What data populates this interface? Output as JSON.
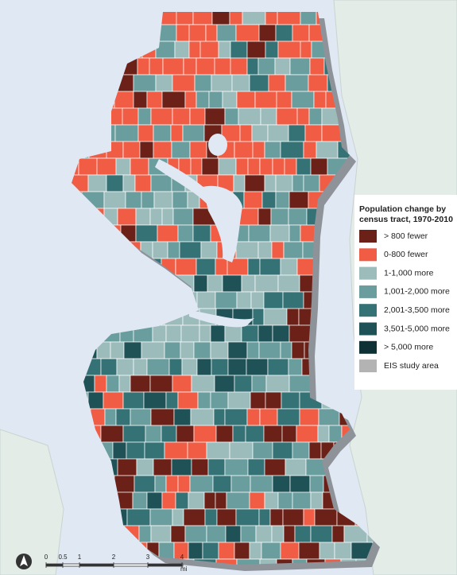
{
  "legend": {
    "title": [
      "Population change by",
      "census tract, 1970-2010"
    ],
    "items": [
      {
        "label": "> 800 fewer",
        "color": "#6b2117"
      },
      {
        "label": "0-800 fewer",
        "color": "#f05c44"
      },
      {
        "label": "1-1,000 more",
        "color": "#9cbcbc"
      },
      {
        "label": "1,001-2,000 more",
        "color": "#6a9d9e"
      },
      {
        "label": "2,001-3,500 more",
        "color": "#347276"
      },
      {
        "label": "3,501-5,000 more",
        "color": "#1f5257"
      },
      {
        "label": "> 5,000 more",
        "color": "#0e3136"
      },
      {
        "label": "EIS study area",
        "color": "#b3b3b3"
      }
    ]
  },
  "scale": {
    "ticks": [
      "0",
      "0.5",
      "1",
      "2",
      "3",
      "4"
    ],
    "unit": "mi"
  }
}
